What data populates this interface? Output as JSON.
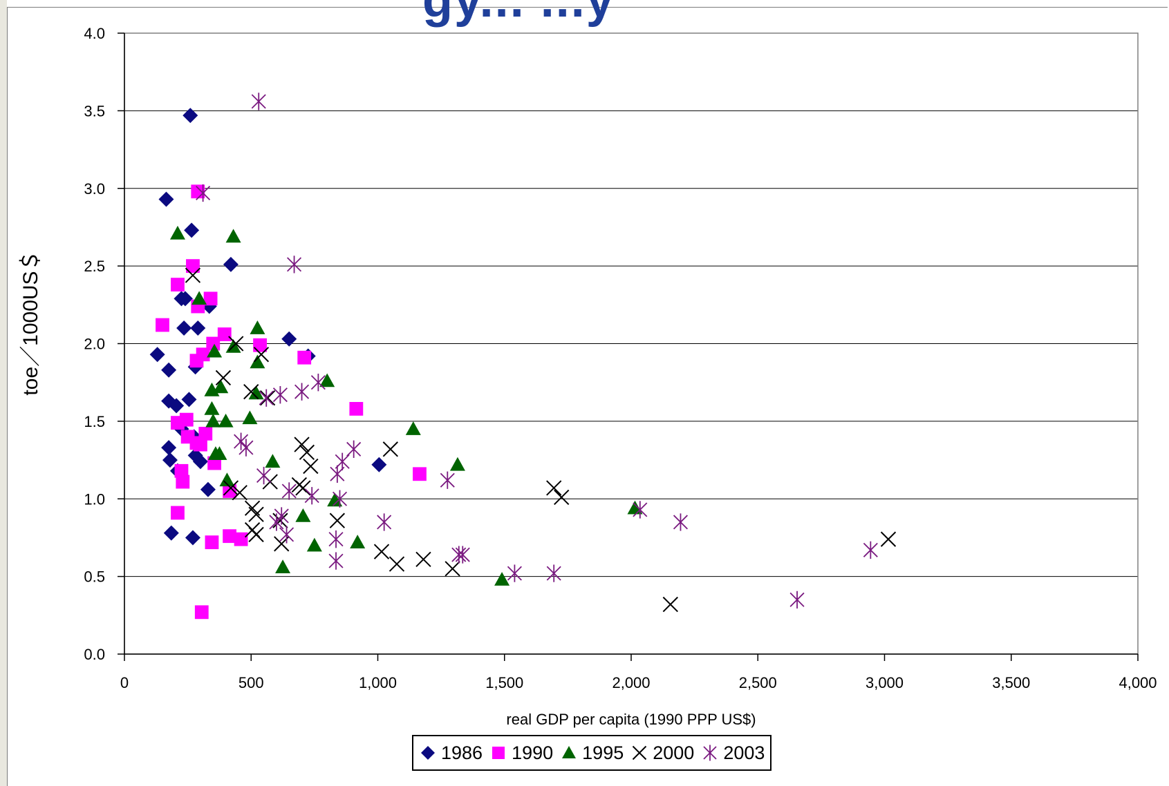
{
  "page": {
    "clipped_title": "gy... ...y"
  },
  "chart_data": {
    "type": "scatter",
    "title": "",
    "xlabel": "real GDP per capita (1990 PPP US$)",
    "ylabel": "toe／1000US＄",
    "xlim": [
      0,
      4000
    ],
    "ylim": [
      0,
      4.0
    ],
    "x_ticks": [
      "0",
      "500",
      "1,000",
      "1,500",
      "2,000",
      "2,500",
      "3,000",
      "3,500",
      "4,000"
    ],
    "y_ticks": [
      "0.0",
      "0.5",
      "1.0",
      "1.5",
      "2.0",
      "2.5",
      "3.0",
      "3.5",
      "4.0"
    ],
    "x_tick_values": [
      0,
      500,
      1000,
      1500,
      2000,
      2500,
      3000,
      3500,
      4000
    ],
    "y_tick_values": [
      0,
      0.5,
      1.0,
      1.5,
      2.0,
      2.5,
      3.0,
      3.5,
      4.0
    ],
    "grid": "horizontal",
    "legend_position": "bottom",
    "series": [
      {
        "name": "1986",
        "marker": "diamond",
        "color": "#0b0a80",
        "points": [
          [
            260,
            3.47
          ],
          [
            165,
            2.93
          ],
          [
            265,
            2.73
          ],
          [
            420,
            2.51
          ],
          [
            225,
            2.29
          ],
          [
            240,
            2.29
          ],
          [
            335,
            2.24
          ],
          [
            235,
            2.1
          ],
          [
            290,
            2.1
          ],
          [
            650,
            2.03
          ],
          [
            130,
            1.93
          ],
          [
            725,
            1.92
          ],
          [
            175,
            1.83
          ],
          [
            280,
            1.85
          ],
          [
            175,
            1.63
          ],
          [
            205,
            1.6
          ],
          [
            255,
            1.64
          ],
          [
            225,
            1.45
          ],
          [
            275,
            1.4
          ],
          [
            175,
            1.33
          ],
          [
            280,
            1.28
          ],
          [
            300,
            1.24
          ],
          [
            180,
            1.25
          ],
          [
            210,
            1.18
          ],
          [
            1005,
            1.22
          ],
          [
            330,
            1.06
          ],
          [
            185,
            0.78
          ],
          [
            270,
            0.75
          ]
        ]
      },
      {
        "name": "1990",
        "marker": "square",
        "color": "#ff00ff",
        "points": [
          [
            290,
            2.98
          ],
          [
            270,
            2.5
          ],
          [
            210,
            2.38
          ],
          [
            340,
            2.29
          ],
          [
            290,
            2.24
          ],
          [
            150,
            2.12
          ],
          [
            395,
            2.06
          ],
          [
            350,
            2.0
          ],
          [
            535,
            1.99
          ],
          [
            310,
            1.93
          ],
          [
            285,
            1.89
          ],
          [
            710,
            1.91
          ],
          [
            915,
            1.58
          ],
          [
            245,
            1.51
          ],
          [
            210,
            1.49
          ],
          [
            250,
            1.4
          ],
          [
            320,
            1.42
          ],
          [
            285,
            1.36
          ],
          [
            300,
            1.35
          ],
          [
            355,
            1.23
          ],
          [
            225,
            1.18
          ],
          [
            1165,
            1.16
          ],
          [
            230,
            1.11
          ],
          [
            415,
            1.05
          ],
          [
            210,
            0.91
          ],
          [
            415,
            0.76
          ],
          [
            460,
            0.74
          ],
          [
            345,
            0.72
          ],
          [
            305,
            0.27
          ]
        ]
      },
      {
        "name": "1995",
        "marker": "triangle",
        "color": "#006400",
        "points": [
          [
            210,
            2.71
          ],
          [
            430,
            2.69
          ],
          [
            295,
            2.29
          ],
          [
            525,
            2.1
          ],
          [
            430,
            1.98
          ],
          [
            355,
            1.95
          ],
          [
            525,
            1.88
          ],
          [
            800,
            1.76
          ],
          [
            345,
            1.7
          ],
          [
            380,
            1.72
          ],
          [
            520,
            1.68
          ],
          [
            345,
            1.58
          ],
          [
            495,
            1.52
          ],
          [
            350,
            1.5
          ],
          [
            400,
            1.5
          ],
          [
            1140,
            1.45
          ],
          [
            585,
            1.24
          ],
          [
            360,
            1.29
          ],
          [
            375,
            1.29
          ],
          [
            1315,
            1.22
          ],
          [
            405,
            1.12
          ],
          [
            830,
            0.99
          ],
          [
            2015,
            0.94
          ],
          [
            705,
            0.89
          ],
          [
            920,
            0.72
          ],
          [
            750,
            0.7
          ],
          [
            625,
            0.56
          ],
          [
            1490,
            0.48
          ]
        ]
      },
      {
        "name": "2000",
        "marker": "x",
        "color": "#000000",
        "points": [
          [
            270,
            2.44
          ],
          [
            440,
            2.0
          ],
          [
            540,
            1.93
          ],
          [
            390,
            1.78
          ],
          [
            500,
            1.69
          ],
          [
            565,
            1.65
          ],
          [
            700,
            1.35
          ],
          [
            1050,
            1.32
          ],
          [
            720,
            1.3
          ],
          [
            735,
            1.21
          ],
          [
            575,
            1.11
          ],
          [
            690,
            1.09
          ],
          [
            705,
            1.07
          ],
          [
            455,
            1.04
          ],
          [
            420,
            1.07
          ],
          [
            1695,
            1.07
          ],
          [
            1725,
            1.01
          ],
          [
            505,
            0.94
          ],
          [
            520,
            0.9
          ],
          [
            840,
            0.86
          ],
          [
            615,
            0.86
          ],
          [
            505,
            0.8
          ],
          [
            520,
            0.77
          ],
          [
            620,
            0.71
          ],
          [
            1015,
            0.66
          ],
          [
            1180,
            0.61
          ],
          [
            1075,
            0.58
          ],
          [
            1295,
            0.55
          ],
          [
            3015,
            0.74
          ],
          [
            2155,
            0.32
          ]
        ]
      },
      {
        "name": "2003",
        "marker": "asterisk",
        "color": "#7a1a80",
        "points": [
          [
            530,
            3.56
          ],
          [
            310,
            2.97
          ],
          [
            670,
            2.51
          ],
          [
            765,
            1.75
          ],
          [
            615,
            1.67
          ],
          [
            700,
            1.69
          ],
          [
            560,
            1.65
          ],
          [
            460,
            1.37
          ],
          [
            480,
            1.33
          ],
          [
            905,
            1.32
          ],
          [
            860,
            1.24
          ],
          [
            840,
            1.16
          ],
          [
            1275,
            1.12
          ],
          [
            550,
            1.15
          ],
          [
            650,
            1.05
          ],
          [
            740,
            1.02
          ],
          [
            850,
            1.0
          ],
          [
            1025,
            0.85
          ],
          [
            2035,
            0.93
          ],
          [
            2195,
            0.85
          ],
          [
            620,
            0.89
          ],
          [
            600,
            0.85
          ],
          [
            640,
            0.77
          ],
          [
            835,
            0.74
          ],
          [
            1320,
            0.64
          ],
          [
            1335,
            0.64
          ],
          [
            835,
            0.6
          ],
          [
            1540,
            0.52
          ],
          [
            1695,
            0.52
          ],
          [
            2945,
            0.67
          ],
          [
            2655,
            0.35
          ]
        ]
      }
    ]
  }
}
